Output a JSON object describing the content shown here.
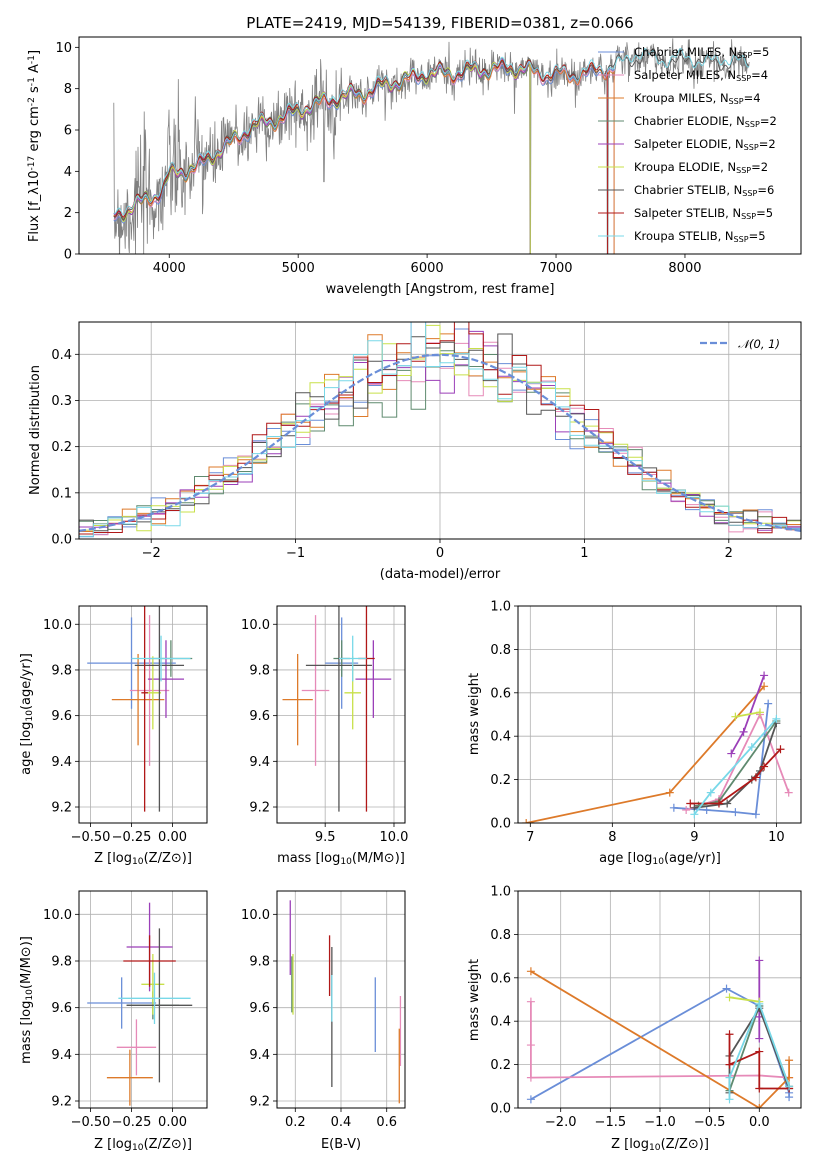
{
  "chart_data": [
    {
      "id": "spectrum",
      "type": "line",
      "title": "PLATE=2419, MJD=54139, FIBERID=0381, z=0.066",
      "xlabel": "wavelength [Angstrom, rest frame]",
      "ylabel": "Flux [f_λ10^{-17} erg cm^{-2} s^{-1} A^{-1}]",
      "xlim": [
        3300,
        8900
      ],
      "ylim": [
        0,
        10.5
      ],
      "xticks": [
        4000,
        5000,
        6000,
        7000,
        8000
      ],
      "yticks": [
        0,
        2,
        4,
        6,
        8,
        10
      ],
      "grid": false,
      "legend_loc": "right",
      "data_color": "#808080",
      "data_range": [
        3570,
        8500
      ],
      "continuum_points": [
        [
          3570,
          1.8
        ],
        [
          3700,
          2.2
        ],
        [
          3900,
          2.9
        ],
        [
          3960,
          3.2
        ],
        [
          4000,
          3.8
        ],
        [
          4200,
          4.2
        ],
        [
          4400,
          5.0
        ],
        [
          4600,
          6.0
        ],
        [
          4860,
          6.6
        ],
        [
          5000,
          6.9
        ],
        [
          5200,
          7.4
        ],
        [
          5500,
          7.8
        ],
        [
          5800,
          8.4
        ],
        [
          6000,
          8.7
        ],
        [
          6300,
          8.8
        ],
        [
          6563,
          9.0
        ],
        [
          6800,
          8.9
        ],
        [
          7000,
          8.6
        ],
        [
          7400,
          8.9
        ],
        [
          7600,
          9.5
        ],
        [
          8000,
          9.3
        ],
        [
          8500,
          9.2
        ]
      ],
      "models": [
        {
          "label": "Chabrier MILES, N_{SSP}=5",
          "color": "#6a8ed8",
          "end": 7450
        },
        {
          "label": "Salpeter MILES, N_{SSP}=4",
          "color": "#e68ab8",
          "end": 7450
        },
        {
          "label": "Kroupa MILES, N_{SSP}=4",
          "color": "#dd7a2a",
          "end": 7450
        },
        {
          "label": "Chabrier ELODIE, N_{SSP}=2",
          "color": "#5f8a6f",
          "end": 6800
        },
        {
          "label": "Salpeter ELODIE, N_{SSP}=2",
          "color": "#9b3fb8",
          "end": 6800
        },
        {
          "label": "Kroupa ELODIE, N_{SSP}=2",
          "color": "#c8e04a",
          "end": 6800
        },
        {
          "label": "Chabrier STELIB, N_{SSP}=6",
          "color": "#555555",
          "end": 8500
        },
        {
          "label": "Salpeter STELIB, N_{SSP}=5",
          "color": "#b01818",
          "end": 7400
        },
        {
          "label": "Kroupa STELIB, N_{SSP}=5",
          "color": "#78d8e8",
          "end": 8500
        }
      ]
    },
    {
      "id": "residuals",
      "type": "histogram",
      "xlabel": "(data-model)/error",
      "ylabel": "Normed distribution",
      "xlim": [
        -2.5,
        2.5
      ],
      "ylim": [
        0,
        0.47
      ],
      "xticks": [
        -2,
        -1,
        0,
        1,
        2
      ],
      "yticks": [
        0.0,
        0.1,
        0.2,
        0.3,
        0.4
      ],
      "grid": true,
      "bin_width": 0.1,
      "reference": {
        "label": "𝒩(0, 1)",
        "mean": 0,
        "sigma": 1,
        "color": "#6a8ed8"
      },
      "legend_loc": "top-right"
    },
    {
      "id": "age-vs-Z",
      "type": "errorbar",
      "xlabel": "Z [log10(Z/Z⊙)]",
      "ylabel": "age [log10(age/yr)]",
      "xlim": [
        -0.57,
        0.21
      ],
      "ylim": [
        9.13,
        10.08
      ],
      "xticks": [
        -0.5,
        -0.25,
        0.0
      ],
      "yticks": [
        9.2,
        9.4,
        9.6,
        9.8,
        10.0
      ],
      "points": [
        {
          "color": "#6a8ed8",
          "x": -0.25,
          "y": 9.83,
          "xerr": 0.27,
          "yerr": 0.2
        },
        {
          "color": "#e68ab8",
          "x": -0.14,
          "y": 9.71,
          "xerr": 0.12,
          "yerr": 0.33
        },
        {
          "color": "#dd7a2a",
          "x": -0.21,
          "y": 9.67,
          "xerr": 0.16,
          "yerr": 0.2
        },
        {
          "color": "#5f8a6f",
          "x": -0.01,
          "y": 9.85,
          "xerr": 0.13,
          "yerr": 0.08
        },
        {
          "color": "#9b3fb8",
          "x": -0.04,
          "y": 9.76,
          "xerr": 0.11,
          "yerr": 0.17
        },
        {
          "color": "#c8e04a",
          "x": -0.12,
          "y": 9.7,
          "xerr": 0.05,
          "yerr": 0.16
        },
        {
          "color": "#555555",
          "x": -0.08,
          "y": 9.82,
          "xerr": 0.15,
          "yerr": 0.64
        },
        {
          "color": "#b01818",
          "x": -0.17,
          "y": 9.7,
          "xerr": 0.02,
          "yerr": 0.52
        },
        {
          "color": "#78d8e8",
          "x": -0.07,
          "y": 9.85,
          "xerr": 0.18,
          "yerr": 0.1
        }
      ]
    },
    {
      "id": "age-vs-mass",
      "type": "errorbar",
      "xlabel": "mass [log10(M/M⊙)]",
      "ylabel": "",
      "xlim": [
        9.15,
        10.08
      ],
      "ylim": [
        9.13,
        10.08
      ],
      "xticks": [
        9.5,
        10.0
      ],
      "yticks": [
        9.2,
        9.4,
        9.6,
        9.8,
        10.0
      ],
      "points": [
        {
          "color": "#6a8ed8",
          "x": 9.62,
          "y": 9.83,
          "xerr": 0.12,
          "yerr": 0.2
        },
        {
          "color": "#e68ab8",
          "x": 9.43,
          "y": 9.71,
          "xerr": 0.1,
          "yerr": 0.33
        },
        {
          "color": "#dd7a2a",
          "x": 9.3,
          "y": 9.67,
          "xerr": 0.11,
          "yerr": 0.2
        },
        {
          "color": "#5f8a6f",
          "x": 9.62,
          "y": 9.85,
          "xerr": 0.06,
          "yerr": 0.08
        },
        {
          "color": "#9b3fb8",
          "x": 9.85,
          "y": 9.76,
          "xerr": 0.13,
          "yerr": 0.17
        },
        {
          "color": "#c8e04a",
          "x": 9.7,
          "y": 9.7,
          "xerr": 0.06,
          "yerr": 0.16
        },
        {
          "color": "#555555",
          "x": 9.6,
          "y": 9.82,
          "xerr": 0.24,
          "yerr": 0.64
        },
        {
          "color": "#b01818",
          "x": 9.8,
          "y": 9.85,
          "xerr": 0.06,
          "yerr": 0.67
        },
        {
          "color": "#78d8e8",
          "x": 9.7,
          "y": 9.85,
          "xerr": 0.1,
          "yerr": 0.1
        }
      ]
    },
    {
      "id": "weight-vs-age",
      "type": "line",
      "xlabel": "age [log10(age/yr)]",
      "ylabel": "mass weight",
      "xlim": [
        6.85,
        10.3
      ],
      "ylim": [
        0,
        1.0
      ],
      "xticks": [
        7,
        8,
        9,
        10
      ],
      "yticks": [
        0.0,
        0.2,
        0.4,
        0.6,
        0.8,
        1.0
      ],
      "grid": true,
      "series": [
        {
          "color": "#6a8ed8",
          "x": [
            8.75,
            9.15,
            9.5,
            9.75,
            9.9
          ],
          "y": [
            0.07,
            0.06,
            0.05,
            0.04,
            0.55
          ]
        },
        {
          "color": "#e68ab8",
          "x": [
            8.9,
            9.3,
            9.8,
            10.15
          ],
          "y": [
            0.06,
            0.11,
            0.5,
            0.14
          ]
        },
        {
          "color": "#dd7a2a",
          "x": [
            6.95,
            8.7,
            9.85
          ],
          "y": [
            0.0,
            0.14,
            0.63
          ]
        },
        {
          "color": "#5f8a6f",
          "x": [
            9.05,
            9.3,
            10.0
          ],
          "y": [
            0.08,
            0.1,
            0.47
          ]
        },
        {
          "color": "#9b3fb8",
          "x": [
            9.45,
            9.6,
            9.85
          ],
          "y": [
            0.32,
            0.42,
            0.68
          ]
        },
        {
          "color": "#c8e04a",
          "x": [
            9.5,
            9.8
          ],
          "y": [
            0.49,
            0.51
          ]
        },
        {
          "color": "#555555",
          "x": [
            9.0,
            9.4,
            9.7,
            9.8,
            10.0
          ],
          "y": [
            0.07,
            0.09,
            0.2,
            0.24,
            0.46
          ]
        },
        {
          "color": "#b01818",
          "x": [
            8.95,
            9.3,
            9.75,
            9.85,
            10.05
          ],
          "y": [
            0.09,
            0.09,
            0.21,
            0.26,
            0.34
          ]
        },
        {
          "color": "#78d8e8",
          "x": [
            9.0,
            9.2,
            9.7,
            10.0
          ],
          "y": [
            0.04,
            0.14,
            0.35,
            0.48
          ]
        }
      ]
    },
    {
      "id": "mass-vs-Z",
      "type": "errorbar",
      "xlabel": "Z [log10(Z/Z⊙)]",
      "ylabel": "mass [log10(M/M⊙)]",
      "xlim": [
        -0.57,
        0.21
      ],
      "ylim": [
        9.17,
        10.1
      ],
      "xticks": [
        -0.5,
        -0.25,
        0.0
      ],
      "yticks": [
        9.2,
        9.4,
        9.6,
        9.8,
        10.0
      ],
      "points": [
        {
          "color": "#6a8ed8",
          "x": -0.31,
          "y": 9.62,
          "xerr": 0.21,
          "yerr": 0.11
        },
        {
          "color": "#e68ab8",
          "x": -0.22,
          "y": 9.43,
          "xerr": 0.12,
          "yerr": 0.12
        },
        {
          "color": "#dd7a2a",
          "x": -0.26,
          "y": 9.3,
          "xerr": 0.14,
          "yerr": 0.12
        },
        {
          "color": "#5f8a6f",
          "x": -0.12,
          "y": 9.61,
          "xerr": 0.16,
          "yerr": 0.06
        },
        {
          "color": "#9b3fb8",
          "x": -0.14,
          "y": 9.86,
          "xerr": 0.14,
          "yerr": 0.19
        },
        {
          "color": "#c8e04a",
          "x": -0.12,
          "y": 9.7,
          "xerr": 0.07,
          "yerr": 0.13
        },
        {
          "color": "#555555",
          "x": -0.08,
          "y": 9.61,
          "xerr": 0.2,
          "yerr": 0.33
        },
        {
          "color": "#b01818",
          "x": -0.14,
          "y": 9.8,
          "xerr": 0.16,
          "yerr": 0.11
        },
        {
          "color": "#78d8e8",
          "x": -0.11,
          "y": 9.64,
          "xerr": 0.22,
          "yerr": 0.11
        }
      ]
    },
    {
      "id": "mass-vs-ebv",
      "type": "errorbar",
      "xlabel": "E(B-V)",
      "ylabel": "",
      "xlim": [
        0.12,
        0.68
      ],
      "ylim": [
        9.17,
        10.1
      ],
      "xticks": [
        0.2,
        0.4,
        0.6
      ],
      "yticks": [
        9.2,
        9.4,
        9.6,
        9.8,
        10.0
      ],
      "points": [
        {
          "color": "#6a8ed8",
          "x": 0.55,
          "y": 9.57,
          "xerr": 0,
          "yerr": 0.16
        },
        {
          "color": "#e68ab8",
          "x": 0.66,
          "y": 9.5,
          "xerr": 0,
          "yerr": 0.15
        },
        {
          "color": "#dd7a2a",
          "x": 0.655,
          "y": 9.35,
          "xerr": 0,
          "yerr": 0.16
        },
        {
          "color": "#5f8a6f",
          "x": 0.185,
          "y": 9.7,
          "xerr": 0,
          "yerr": 0.12
        },
        {
          "color": "#9b3fb8",
          "x": 0.178,
          "y": 9.9,
          "xerr": 0,
          "yerr": 0.16
        },
        {
          "color": "#c8e04a",
          "x": 0.19,
          "y": 9.7,
          "xerr": 0,
          "yerr": 0.13
        },
        {
          "color": "#555555",
          "x": 0.36,
          "y": 9.56,
          "xerr": 0,
          "yerr": 0.3
        },
        {
          "color": "#b01818",
          "x": 0.35,
          "y": 9.78,
          "xerr": 0,
          "yerr": 0.13
        },
        {
          "color": "#78d8e8",
          "x": 0.36,
          "y": 9.64,
          "xerr": 0,
          "yerr": 0.1
        }
      ]
    },
    {
      "id": "weight-vs-Z",
      "type": "line",
      "xlabel": "Z [log10(Z/Z⊙)]",
      "ylabel": "mass weight",
      "xlim": [
        -2.43,
        0.42
      ],
      "ylim": [
        0,
        1.0
      ],
      "xticks": [
        -2.0,
        -1.5,
        -1.0,
        -0.5,
        0.0
      ],
      "yticks": [
        0.0,
        0.2,
        0.4,
        0.6,
        0.8,
        1.0
      ],
      "grid": true,
      "series": [
        {
          "color": "#6a8ed8",
          "x": [
            -2.3,
            -0.33,
            0.0,
            0.3,
            0.3
          ],
          "y": [
            0.04,
            0.55,
            0.47,
            0.07,
            0.05
          ]
        },
        {
          "color": "#e68ab8",
          "x": [
            -2.3,
            -2.3,
            -2.3,
            0.0,
            0.3
          ],
          "y": [
            0.49,
            0.29,
            0.14,
            0.15,
            0.14
          ]
        },
        {
          "color": "#dd7a2a",
          "x": [
            -2.3,
            0.0,
            0.3,
            0.3
          ],
          "y": [
            0.63,
            0.0,
            0.14,
            0.22
          ]
        },
        {
          "color": "#5f8a6f",
          "x": [
            -0.3,
            0.0,
            0.3
          ],
          "y": [
            0.08,
            0.47,
            0.1
          ]
        },
        {
          "color": "#9b3fb8",
          "x": [
            0.0,
            0.0,
            0.0
          ],
          "y": [
            0.68,
            0.42,
            0.32
          ]
        },
        {
          "color": "#c8e04a",
          "x": [
            -0.3,
            0.0
          ],
          "y": [
            0.51,
            0.49
          ]
        },
        {
          "color": "#555555",
          "x": [
            -0.3,
            -0.3,
            0.0,
            0.3
          ],
          "y": [
            0.07,
            0.24,
            0.46,
            0.09
          ]
        },
        {
          "color": "#b01818",
          "x": [
            -0.3,
            -0.3,
            0.0,
            0.0,
            0.3
          ],
          "y": [
            0.34,
            0.2,
            0.26,
            0.09,
            0.09
          ]
        },
        {
          "color": "#78d8e8",
          "x": [
            -0.3,
            -0.3,
            0.0,
            0.3
          ],
          "y": [
            0.04,
            0.14,
            0.48,
            0.1
          ]
        }
      ]
    }
  ]
}
